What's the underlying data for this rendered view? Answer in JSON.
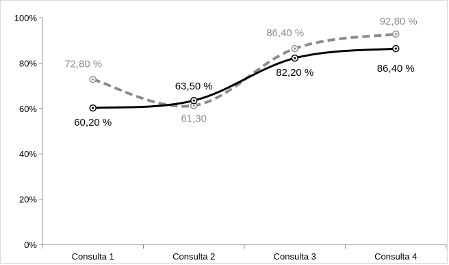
{
  "chart_data": {
    "type": "line",
    "categories": [
      "Consulta 1",
      "Consulta 2",
      "Consulta 3",
      "Consulta 4"
    ],
    "ylim": [
      0,
      100
    ],
    "yticks": [
      0,
      20,
      40,
      60,
      80,
      100
    ],
    "ytick_labels": [
      "0%",
      "20%",
      "40%",
      "60%",
      "80%",
      "100%"
    ],
    "legend": "none",
    "grid": false,
    "series": [
      {
        "style": "solid",
        "color": "#000000",
        "values": [
          60.2,
          63.5,
          82.2,
          86.4
        ],
        "labels": [
          "60,20 %",
          "63,50 %",
          "82,20 %",
          "86,40 %"
        ]
      },
      {
        "style": "dashed",
        "color": "#8c8c8c",
        "values": [
          72.8,
          61.3,
          86.4,
          92.8
        ],
        "labels": [
          "72,80 %",
          "61,30",
          "86,40 %",
          "92,80 %"
        ]
      }
    ]
  }
}
